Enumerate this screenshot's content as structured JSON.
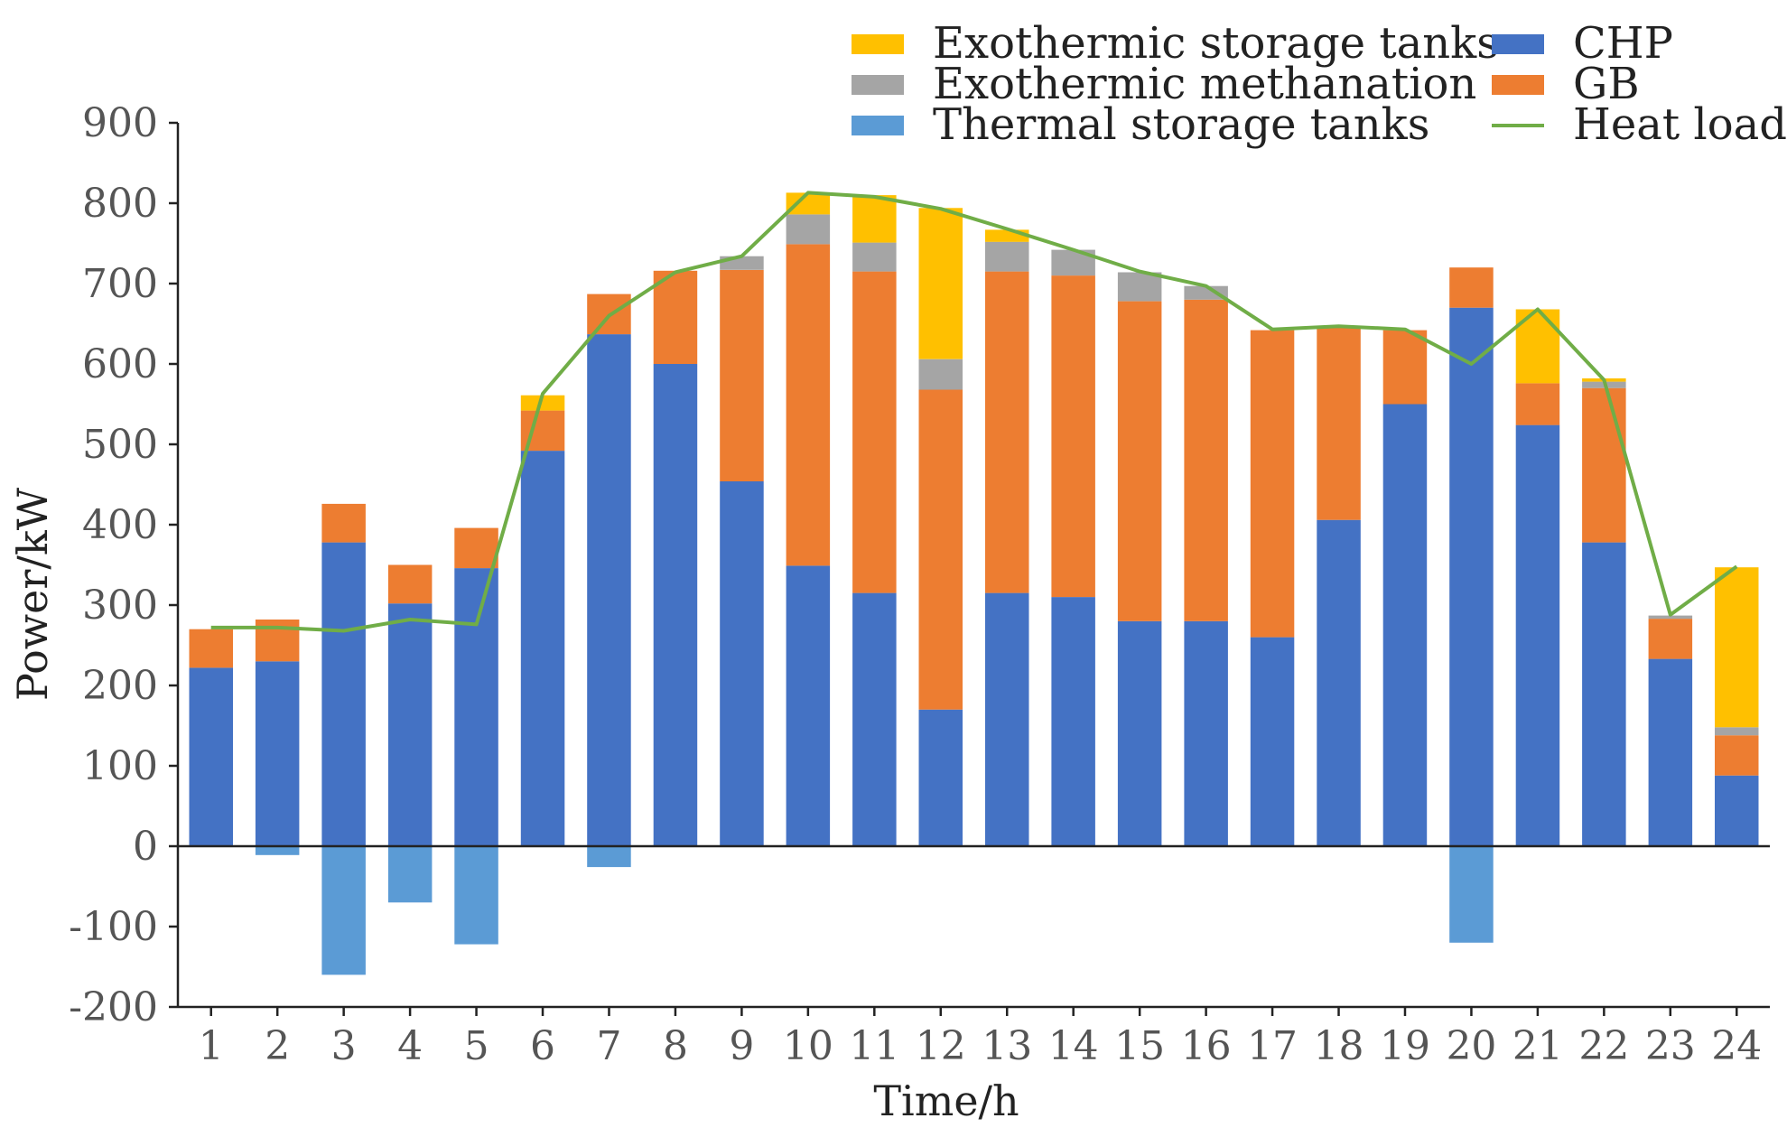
{
  "chart_data": {
    "type": "bar",
    "stacked": true,
    "title": "",
    "xlabel": "Time/h",
    "ylabel": "Power/kW",
    "ylim": [
      -200,
      900
    ],
    "yticks": [
      900,
      800,
      700,
      600,
      500,
      400,
      300,
      200,
      100,
      0,
      -100,
      -200
    ],
    "categories": [
      "1",
      "2",
      "3",
      "4",
      "5",
      "6",
      "7",
      "8",
      "9",
      "10",
      "11",
      "12",
      "13",
      "14",
      "15",
      "16",
      "17",
      "18",
      "19",
      "20",
      "21",
      "22",
      "23",
      "24"
    ],
    "series": [
      {
        "name": "CHP",
        "color": "#4472C4",
        "values": [
          222,
          230,
          378,
          302,
          346,
          492,
          637,
          600,
          454,
          349,
          315,
          170,
          315,
          310,
          280,
          280,
          260,
          406,
          550,
          670,
          524,
          378,
          233,
          88
        ]
      },
      {
        "name": "GB",
        "color": "#ED7D31",
        "values": [
          48,
          52,
          48,
          48,
          50,
          50,
          50,
          116,
          263,
          400,
          400,
          398,
          400,
          400,
          398,
          400,
          382,
          239,
          92,
          50,
          52,
          192,
          50,
          50
        ]
      },
      {
        "name": "Exothermic methanation",
        "color": "#A5A5A5",
        "values": [
          0,
          0,
          0,
          0,
          0,
          0,
          0,
          0,
          17,
          37,
          36,
          38,
          37,
          32,
          36,
          17,
          0,
          0,
          0,
          0,
          0,
          8,
          4,
          10
        ]
      },
      {
        "name": "Exothermic storage tanks",
        "color": "#FFC000",
        "values": [
          0,
          0,
          0,
          0,
          0,
          19,
          0,
          0,
          0,
          27,
          59,
          188,
          15,
          0,
          0,
          0,
          0,
          0,
          0,
          0,
          92,
          4,
          0,
          199
        ]
      },
      {
        "name": "Thermal storage tanks",
        "color": "#5B9BD5",
        "values": [
          0,
          -11,
          -160,
          -70,
          -122,
          0,
          -26,
          0,
          0,
          0,
          0,
          0,
          0,
          0,
          0,
          0,
          0,
          0,
          0,
          -120,
          0,
          0,
          0,
          0
        ]
      }
    ],
    "line_series": {
      "name": "Heat load",
      "color": "#70AD47",
      "values": [
        272,
        272,
        268,
        282,
        276,
        563,
        660,
        714,
        734,
        813,
        808,
        793,
        768,
        742,
        715,
        697,
        643,
        647,
        643,
        600,
        668,
        580,
        288,
        348
      ]
    },
    "legend": {
      "position": "top",
      "items": [
        "Exothermic storage tanks",
        "Exothermic methanation",
        "Thermal storage tanks",
        "CHP",
        "GB",
        "Heat load"
      ]
    }
  }
}
